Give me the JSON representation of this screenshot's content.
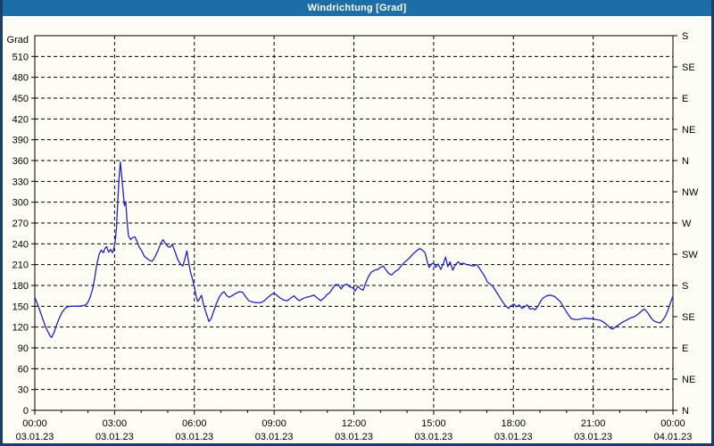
{
  "window": {
    "title": "Windrichtung [Grad]"
  },
  "colors": {
    "titlebar_bg": "#1c6ea6",
    "titlebar_text": "#ffffff",
    "frame": "#173f6a",
    "background": "#fdfdf6",
    "grid": "#000000",
    "axis": "#000000",
    "tick_text": "#000000",
    "line": "#2222bd"
  },
  "chart_data": {
    "type": "line",
    "title": "Windrichtung [Grad]",
    "y_axis_unit_label": "Grad",
    "y_min": 0,
    "y_max": 540,
    "y_step": 30,
    "y_tick_values": [
      0,
      30,
      60,
      90,
      120,
      150,
      180,
      210,
      240,
      270,
      300,
      330,
      360,
      390,
      420,
      450,
      480,
      510
    ],
    "right_axis": {
      "step_degrees": 45,
      "labels_bottom_to_top": [
        "N",
        "NE",
        "E",
        "SE",
        "S",
        "SW",
        "W",
        "NW",
        "N",
        "NE",
        "E",
        "SE",
        "S"
      ]
    },
    "x_hours_span": 24,
    "x_major_step_hours": 3,
    "x_minor_step_hours": 1,
    "x_ticks": [
      {
        "hour": 0,
        "time": "00:00",
        "date": "03.01.23"
      },
      {
        "hour": 3,
        "time": "03:00",
        "date": "03.01.23"
      },
      {
        "hour": 6,
        "time": "06:00",
        "date": "03.01.23"
      },
      {
        "hour": 9,
        "time": "09:00",
        "date": "03.01.23"
      },
      {
        "hour": 12,
        "time": "12:00",
        "date": "03.01.23"
      },
      {
        "hour": 15,
        "time": "15:00",
        "date": "03.01.23"
      },
      {
        "hour": 18,
        "time": "18:00",
        "date": "03.01.23"
      },
      {
        "hour": 21,
        "time": "21:00",
        "date": "03.01.23"
      },
      {
        "hour": 24,
        "time": "00:00",
        "date": "04.01.23"
      }
    ],
    "grid": "dashed",
    "legend": "none",
    "series": [
      {
        "name": "Windrichtung",
        "color": "#2222bd",
        "points": [
          [
            0,
            163
          ],
          [
            0.08,
            155
          ],
          [
            0.17,
            146
          ],
          [
            0.27,
            135
          ],
          [
            0.37,
            124
          ],
          [
            0.47,
            115
          ],
          [
            0.58,
            107
          ],
          [
            0.63,
            105
          ],
          [
            0.72,
            112
          ],
          [
            0.82,
            123
          ],
          [
            0.92,
            133
          ],
          [
            1.02,
            141
          ],
          [
            1.12,
            146
          ],
          [
            1.22,
            149
          ],
          [
            1.35,
            150
          ],
          [
            1.5,
            150
          ],
          [
            1.65,
            150
          ],
          [
            1.8,
            151
          ],
          [
            1.92,
            152
          ],
          [
            2.0,
            156
          ],
          [
            2.08,
            163
          ],
          [
            2.17,
            174
          ],
          [
            2.25,
            190
          ],
          [
            2.33,
            210
          ],
          [
            2.42,
            225
          ],
          [
            2.5,
            231
          ],
          [
            2.58,
            227
          ],
          [
            2.63,
            233
          ],
          [
            2.7,
            236
          ],
          [
            2.78,
            228
          ],
          [
            2.85,
            232
          ],
          [
            2.92,
            227
          ],
          [
            2.97,
            233
          ],
          [
            3.02,
            243
          ],
          [
            3.07,
            262
          ],
          [
            3.12,
            300
          ],
          [
            3.17,
            335
          ],
          [
            3.22,
            358
          ],
          [
            3.27,
            337
          ],
          [
            3.32,
            316
          ],
          [
            3.37,
            295
          ],
          [
            3.42,
            301
          ],
          [
            3.47,
            272
          ],
          [
            3.52,
            252
          ],
          [
            3.6,
            246
          ],
          [
            3.68,
            249
          ],
          [
            3.77,
            250
          ],
          [
            3.85,
            243
          ],
          [
            3.93,
            235
          ],
          [
            4.02,
            230
          ],
          [
            4.12,
            222
          ],
          [
            4.22,
            219
          ],
          [
            4.32,
            216
          ],
          [
            4.42,
            215
          ],
          [
            4.53,
            222
          ],
          [
            4.63,
            230
          ],
          [
            4.73,
            240
          ],
          [
            4.82,
            246
          ],
          [
            4.92,
            240
          ],
          [
            5.0,
            236
          ],
          [
            5.08,
            235
          ],
          [
            5.17,
            239
          ],
          [
            5.27,
            229
          ],
          [
            5.37,
            218
          ],
          [
            5.47,
            211
          ],
          [
            5.57,
            208
          ],
          [
            5.65,
            219
          ],
          [
            5.72,
            230
          ],
          [
            5.78,
            215
          ],
          [
            5.85,
            200
          ],
          [
            5.93,
            189
          ],
          [
            6.0,
            178
          ],
          [
            6.07,
            164
          ],
          [
            6.13,
            157
          ],
          [
            6.2,
            161
          ],
          [
            6.27,
            166
          ],
          [
            6.33,
            155
          ],
          [
            6.4,
            145
          ],
          [
            6.47,
            137
          ],
          [
            6.55,
            128
          ],
          [
            6.63,
            132
          ],
          [
            6.72,
            142
          ],
          [
            6.82,
            153
          ],
          [
            6.92,
            162
          ],
          [
            7.02,
            168
          ],
          [
            7.12,
            171
          ],
          [
            7.22,
            165
          ],
          [
            7.32,
            163
          ],
          [
            7.45,
            166
          ],
          [
            7.58,
            169
          ],
          [
            7.7,
            171
          ],
          [
            7.82,
            170
          ],
          [
            7.92,
            164
          ],
          [
            8.05,
            158
          ],
          [
            8.2,
            156
          ],
          [
            8.35,
            155
          ],
          [
            8.5,
            155
          ],
          [
            8.63,
            158
          ],
          [
            8.77,
            163
          ],
          [
            8.9,
            167
          ],
          [
            9.0,
            169
          ],
          [
            9.1,
            166
          ],
          [
            9.22,
            162
          ],
          [
            9.35,
            159
          ],
          [
            9.5,
            158
          ],
          [
            9.63,
            162
          ],
          [
            9.75,
            165
          ],
          [
            9.85,
            161
          ],
          [
            9.95,
            158
          ],
          [
            10.08,
            161
          ],
          [
            10.22,
            163
          ],
          [
            10.35,
            164
          ],
          [
            10.5,
            166
          ],
          [
            10.62,
            162
          ],
          [
            10.75,
            158
          ],
          [
            10.88,
            162
          ],
          [
            11.0,
            167
          ],
          [
            11.1,
            170
          ],
          [
            11.2,
            176
          ],
          [
            11.3,
            181
          ],
          [
            11.42,
            181
          ],
          [
            11.52,
            175
          ],
          [
            11.62,
            180
          ],
          [
            11.72,
            182
          ],
          [
            11.85,
            178
          ],
          [
            11.95,
            177
          ],
          [
            12.05,
            172
          ],
          [
            12.15,
            179
          ],
          [
            12.25,
            175
          ],
          [
            12.35,
            173
          ],
          [
            12.45,
            184
          ],
          [
            12.55,
            193
          ],
          [
            12.65,
            199
          ],
          [
            12.78,
            202
          ],
          [
            12.9,
            203
          ],
          [
            13.0,
            206
          ],
          [
            13.1,
            208
          ],
          [
            13.2,
            203
          ],
          [
            13.32,
            197
          ],
          [
            13.42,
            195
          ],
          [
            13.55,
            200
          ],
          [
            13.67,
            203
          ],
          [
            13.8,
            209
          ],
          [
            13.92,
            214
          ],
          [
            14.05,
            218
          ],
          [
            14.17,
            223
          ],
          [
            14.3,
            228
          ],
          [
            14.42,
            232
          ],
          [
            14.5,
            233
          ],
          [
            14.6,
            230
          ],
          [
            14.68,
            227
          ],
          [
            14.77,
            213
          ],
          [
            14.83,
            206
          ],
          [
            14.92,
            211
          ],
          [
            15.0,
            212
          ],
          [
            15.08,
            206
          ],
          [
            15.17,
            211
          ],
          [
            15.27,
            203
          ],
          [
            15.37,
            212
          ],
          [
            15.45,
            221
          ],
          [
            15.53,
            207
          ],
          [
            15.62,
            214
          ],
          [
            15.72,
            202
          ],
          [
            15.82,
            210
          ],
          [
            15.92,
            214
          ],
          [
            16.02,
            211
          ],
          [
            16.12,
            212
          ],
          [
            16.25,
            210
          ],
          [
            16.38,
            209
          ],
          [
            16.5,
            208
          ],
          [
            16.62,
            210
          ],
          [
            16.72,
            205
          ],
          [
            16.82,
            199
          ],
          [
            16.92,
            193
          ],
          [
            17.02,
            185
          ],
          [
            17.12,
            182
          ],
          [
            17.22,
            179
          ],
          [
            17.32,
            173
          ],
          [
            17.42,
            167
          ],
          [
            17.52,
            161
          ],
          [
            17.62,
            155
          ],
          [
            17.72,
            150
          ],
          [
            17.82,
            147
          ],
          [
            17.92,
            151
          ],
          [
            18.02,
            153
          ],
          [
            18.12,
            149
          ],
          [
            18.22,
            152
          ],
          [
            18.32,
            147
          ],
          [
            18.42,
            149
          ],
          [
            18.52,
            152
          ],
          [
            18.62,
            146
          ],
          [
            18.72,
            147
          ],
          [
            18.82,
            145
          ],
          [
            18.92,
            150
          ],
          [
            19.02,
            157
          ],
          [
            19.12,
            162
          ],
          [
            19.25,
            165
          ],
          [
            19.4,
            166
          ],
          [
            19.55,
            164
          ],
          [
            19.67,
            160
          ],
          [
            19.78,
            156
          ],
          [
            19.88,
            149
          ],
          [
            19.98,
            143
          ],
          [
            20.08,
            137
          ],
          [
            20.18,
            132
          ],
          [
            20.3,
            131
          ],
          [
            20.45,
            131
          ],
          [
            20.58,
            132
          ],
          [
            20.7,
            133
          ],
          [
            20.82,
            132
          ],
          [
            20.95,
            132
          ],
          [
            21.1,
            131
          ],
          [
            21.25,
            130
          ],
          [
            21.4,
            127
          ],
          [
            21.52,
            123
          ],
          [
            21.63,
            119
          ],
          [
            21.73,
            117
          ],
          [
            21.83,
            120
          ],
          [
            21.95,
            123
          ],
          [
            22.1,
            127
          ],
          [
            22.25,
            130
          ],
          [
            22.4,
            133
          ],
          [
            22.55,
            135
          ],
          [
            22.7,
            139
          ],
          [
            22.82,
            143
          ],
          [
            22.92,
            146
          ],
          [
            23.0,
            143
          ],
          [
            23.08,
            139
          ],
          [
            23.18,
            133
          ],
          [
            23.28,
            129
          ],
          [
            23.4,
            127
          ],
          [
            23.52,
            126
          ],
          [
            23.62,
            130
          ],
          [
            23.72,
            136
          ],
          [
            23.82,
            145
          ],
          [
            23.9,
            154
          ],
          [
            24.0,
            165
          ]
        ]
      }
    ]
  }
}
